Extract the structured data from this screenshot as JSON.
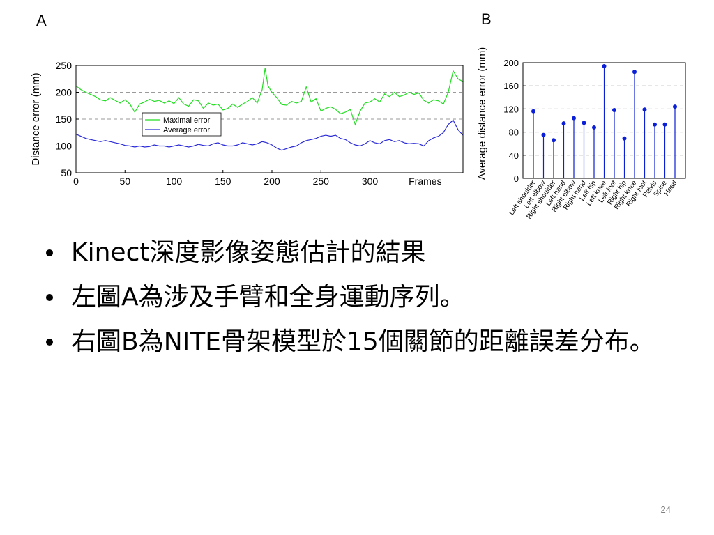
{
  "slide": {
    "bullets": [
      "Kinect深度影像姿態估計的結果",
      "左圖A為涉及手臂和全身運動序列。",
      "右圖B為NITE骨架模型於15個關節的距離誤差分布。"
    ],
    "page_number": "24"
  },
  "chart_data": [
    {
      "panel": "A",
      "type": "line",
      "title": "",
      "xlabel": "Frames",
      "ylabel": "Distance error (mm)",
      "xlim": [
        0,
        395
      ],
      "ylim": [
        50,
        250
      ],
      "xticks": [
        0,
        50,
        100,
        150,
        200,
        250,
        300
      ],
      "yticks": [
        50,
        100,
        150,
        200,
        250
      ],
      "grid": "horizontal dashed",
      "legend_position": "center-left",
      "series": [
        {
          "name": "Maximal error",
          "color": "#22dd22",
          "x": [
            0,
            5,
            10,
            15,
            20,
            25,
            30,
            35,
            40,
            45,
            50,
            55,
            60,
            65,
            70,
            75,
            80,
            85,
            90,
            95,
            100,
            105,
            110,
            115,
            120,
            125,
            130,
            135,
            140,
            145,
            150,
            155,
            160,
            165,
            170,
            175,
            180,
            185,
            190,
            193,
            196,
            200,
            205,
            210,
            215,
            220,
            225,
            230,
            235,
            240,
            245,
            250,
            255,
            260,
            265,
            270,
            275,
            280,
            285,
            290,
            295,
            300,
            305,
            310,
            315,
            320,
            325,
            330,
            335,
            340,
            345,
            350,
            355,
            360,
            365,
            370,
            375,
            380,
            385,
            390,
            395
          ],
          "values": [
            212,
            205,
            200,
            196,
            192,
            186,
            184,
            190,
            185,
            180,
            186,
            178,
            163,
            178,
            182,
            187,
            183,
            185,
            180,
            184,
            179,
            190,
            178,
            174,
            186,
            184,
            170,
            180,
            176,
            178,
            167,
            170,
            178,
            172,
            178,
            183,
            190,
            180,
            205,
            245,
            212,
            200,
            190,
            177,
            176,
            183,
            180,
            183,
            210,
            182,
            188,
            165,
            170,
            173,
            168,
            160,
            163,
            168,
            140,
            165,
            180,
            182,
            188,
            182,
            197,
            192,
            200,
            192,
            195,
            200,
            196,
            199,
            185,
            180,
            186,
            184,
            178,
            200,
            240,
            225,
            220
          ]
        },
        {
          "name": "Average error",
          "color": "#2a2ad6",
          "x": [
            0,
            5,
            10,
            15,
            20,
            25,
            30,
            35,
            40,
            45,
            50,
            55,
            60,
            65,
            70,
            75,
            80,
            85,
            90,
            95,
            100,
            105,
            110,
            115,
            120,
            125,
            130,
            135,
            140,
            145,
            150,
            155,
            160,
            165,
            170,
            175,
            180,
            185,
            190,
            195,
            200,
            205,
            210,
            215,
            220,
            225,
            230,
            235,
            240,
            245,
            250,
            255,
            260,
            265,
            270,
            275,
            280,
            285,
            290,
            295,
            300,
            305,
            310,
            315,
            320,
            325,
            330,
            335,
            340,
            345,
            350,
            355,
            360,
            365,
            370,
            375,
            380,
            385,
            390,
            395
          ],
          "values": [
            122,
            118,
            114,
            112,
            110,
            108,
            110,
            108,
            106,
            104,
            101,
            100,
            98,
            100,
            98,
            99,
            102,
            100,
            100,
            98,
            100,
            102,
            100,
            98,
            100,
            103,
            101,
            100,
            104,
            106,
            102,
            100,
            100,
            102,
            106,
            104,
            102,
            104,
            108,
            106,
            102,
            96,
            92,
            95,
            98,
            100,
            106,
            110,
            112,
            114,
            118,
            120,
            118,
            120,
            114,
            112,
            106,
            102,
            100,
            104,
            110,
            106,
            104,
            110,
            112,
            108,
            110,
            106,
            104,
            105,
            104,
            100,
            110,
            115,
            118,
            125,
            140,
            148,
            130,
            120
          ]
        }
      ]
    },
    {
      "panel": "B",
      "type": "scatter",
      "style": "stem",
      "title": "",
      "xlabel": "",
      "ylabel": "Average distance error (mm)",
      "ylim": [
        0,
        200
      ],
      "yticks": [
        0,
        40,
        80,
        120,
        160,
        200
      ],
      "grid": "horizontal dashed",
      "color": "#0b1fd6",
      "categories": [
        "Left shoulder",
        "Left elbow",
        "Right shoulder",
        "Left hand",
        "Right elbow",
        "Right hand",
        "Left hip",
        "Left knee",
        "Left foot",
        "Right hip",
        "Right knee",
        "Right foot",
        "Pelvis",
        "Spine",
        "Head"
      ],
      "values": [
        116,
        75,
        66,
        95,
        104,
        96,
        88,
        194,
        118,
        69,
        184,
        119,
        93,
        93,
        124
      ]
    }
  ]
}
